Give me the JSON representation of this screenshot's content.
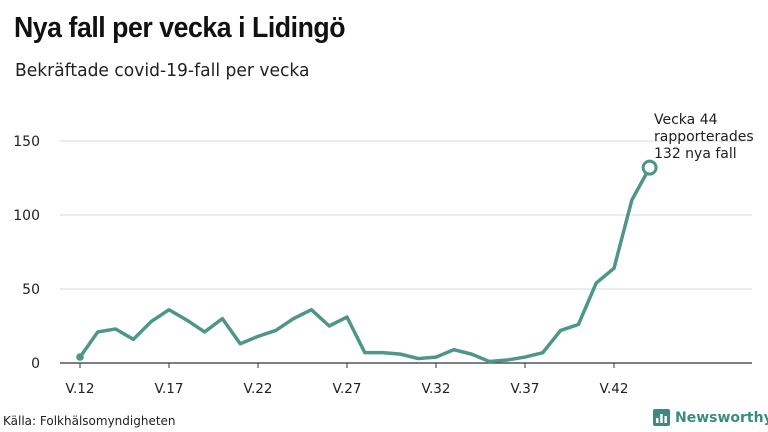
{
  "header": {
    "title": "Nya fall per vecka i Lidingö",
    "subtitle": "Bekräftade covid-19-fall per vecka"
  },
  "footer": {
    "source": "Källa: Folkhälsomyndigheten",
    "brand": "Newsworthy",
    "brand_icon": "bar-chart-logo-icon"
  },
  "colors": {
    "line": "#4e9687",
    "grid": "#d9d9d9",
    "axis": "#333333",
    "brand": "#3a8b82"
  },
  "chart_data": {
    "type": "line",
    "title": "Nya fall per vecka i Lidingö",
    "subtitle": "Bekräftade covid-19-fall per vecka",
    "xlabel": "",
    "ylabel": "",
    "x": [
      "V.12",
      "V.13",
      "V.14",
      "V.15",
      "V.16",
      "V.17",
      "V.18",
      "V.19",
      "V.20",
      "V.21",
      "V.22",
      "V.23",
      "V.24",
      "V.25",
      "V.26",
      "V.27",
      "V.28",
      "V.29",
      "V.30",
      "V.31",
      "V.32",
      "V.33",
      "V.34",
      "V.35",
      "V.36",
      "V.37",
      "V.38",
      "V.39",
      "V.40",
      "V.41",
      "V.42",
      "V.43",
      "V.44"
    ],
    "series": [
      {
        "values": [
          4,
          21,
          23,
          16,
          28,
          36,
          29,
          21,
          30,
          13,
          18,
          22,
          30,
          36,
          25,
          31,
          7,
          7,
          6,
          3,
          4,
          9,
          6,
          1,
          2,
          4,
          7,
          22,
          26,
          54,
          64,
          110,
          132
        ]
      }
    ],
    "x_tick_labels": [
      "V.12",
      "V.17",
      "V.22",
      "V.27",
      "V.32",
      "V.37",
      "V.42"
    ],
    "y_ticks": [
      0,
      50,
      100,
      150
    ],
    "ylim": [
      0,
      160
    ],
    "grid": true,
    "annotation": {
      "lines": [
        "Vecka 44",
        "rapporterades",
        "132 nya fall"
      ],
      "x": "V.44",
      "y": 132
    }
  }
}
